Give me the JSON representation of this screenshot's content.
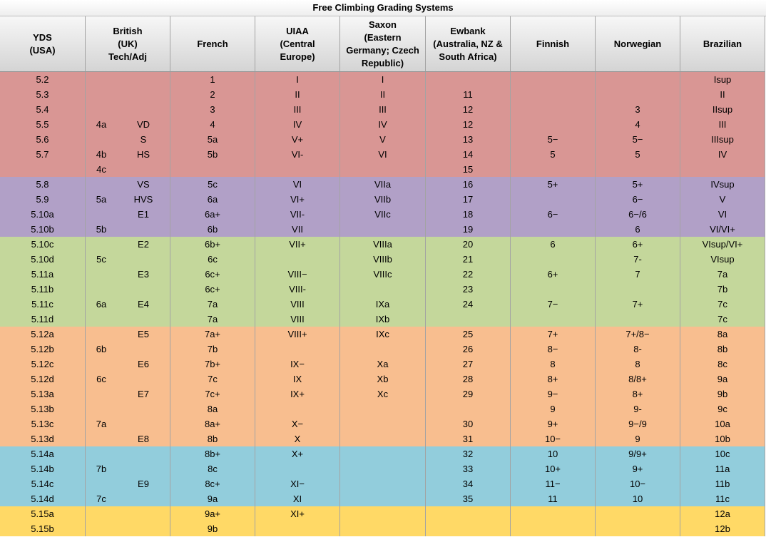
{
  "title": "Free Climbing Grading Systems",
  "headers": [
    {
      "label": "YDS\n(USA)",
      "span": 1
    },
    {
      "label": "British\n(UK)\nTech/Adj",
      "span": 2
    },
    {
      "label": "French",
      "span": 1
    },
    {
      "label": "UIAA\n(Central\nEurope)",
      "span": 1
    },
    {
      "label": "Saxon\n(Eastern\nGermany; Czech\nRepublic)",
      "span": 1
    },
    {
      "label": "Ewbank\n(Australia, NZ &\nSouth Africa)",
      "span": 1
    },
    {
      "label": "Finnish",
      "span": 1
    },
    {
      "label": "Norwegian",
      "span": 1
    },
    {
      "label": "Brazilian",
      "span": 1
    }
  ],
  "group_colors": {
    "red": "#d99694",
    "purple": "#b1a0c7",
    "green": "#c4d79b",
    "orange": "#f8be8f",
    "blue": "#92cddc",
    "yellow": "#ffd966"
  },
  "rows": [
    {
      "group": "red",
      "cells": [
        "5.2",
        "",
        "",
        "1",
        "I",
        "I",
        "",
        "",
        "",
        "Isup"
      ]
    },
    {
      "group": "red",
      "cells": [
        "5.3",
        "",
        "",
        "2",
        "II",
        "II",
        "11",
        "",
        "",
        "II"
      ]
    },
    {
      "group": "red",
      "cells": [
        "5.4",
        "",
        "",
        "3",
        "III",
        "III",
        "12",
        "",
        "3",
        "IIsup"
      ]
    },
    {
      "group": "red",
      "cells": [
        "5.5",
        "4a",
        "VD",
        "4",
        "IV",
        "IV",
        "12",
        "",
        "4",
        "III"
      ]
    },
    {
      "group": "red",
      "cells": [
        "5.6",
        "",
        "S",
        "5a",
        "V+",
        "V",
        "13",
        "5−",
        "5−",
        "IIIsup"
      ]
    },
    {
      "group": "red",
      "cells": [
        "5.7",
        "4b",
        "HS",
        "5b",
        "VI-",
        "VI",
        "14",
        "5",
        "5",
        "IV"
      ]
    },
    {
      "group": "red",
      "cells": [
        "",
        "4c",
        "",
        "",
        "",
        "",
        "15",
        "",
        "",
        ""
      ]
    },
    {
      "group": "purple",
      "cells": [
        "5.8",
        "",
        "VS",
        "5c",
        "VI",
        "VIIa",
        "16",
        "5+",
        "5+",
        "IVsup"
      ]
    },
    {
      "group": "purple",
      "cells": [
        "5.9",
        "5a",
        "HVS",
        "6a",
        "VI+",
        "VIIb",
        "17",
        "",
        "6−",
        "V"
      ]
    },
    {
      "group": "purple",
      "cells": [
        "5.10a",
        "",
        "E1",
        "6a+",
        "VII-",
        "VIIc",
        "18",
        "6−",
        "6−/6",
        "VI"
      ]
    },
    {
      "group": "purple",
      "cells": [
        "5.10b",
        "5b",
        "",
        "6b",
        "VII",
        "",
        "19",
        "",
        "6",
        "VI/VI+"
      ]
    },
    {
      "group": "green",
      "cells": [
        "5.10c",
        "",
        "E2",
        "6b+",
        "VII+",
        "VIIIa",
        "20",
        "6",
        "6+",
        "VIsup/VI+"
      ]
    },
    {
      "group": "green",
      "cells": [
        "5.10d",
        "5c",
        "",
        "6c",
        "",
        "VIIIb",
        "21",
        "",
        "7-",
        "VIsup"
      ]
    },
    {
      "group": "green",
      "cells": [
        "5.11a",
        "",
        "E3",
        "6c+",
        "VIII−",
        "VIIIc",
        "22",
        "6+",
        "7",
        "7a"
      ]
    },
    {
      "group": "green",
      "cells": [
        "5.11b",
        "",
        "",
        "6c+",
        "VIII-",
        "",
        "23",
        "",
        "",
        "7b"
      ]
    },
    {
      "group": "green",
      "cells": [
        "5.11c",
        "6a",
        "E4",
        "7a",
        "VIII",
        "IXa",
        "24",
        "7−",
        "7+",
        "7c"
      ]
    },
    {
      "group": "green",
      "cells": [
        "5.11d",
        "",
        "",
        "7a",
        "VIII",
        "IXb",
        "",
        "",
        "",
        "7c"
      ]
    },
    {
      "group": "orange",
      "cells": [
        "5.12a",
        "",
        "E5",
        "7a+",
        "VIII+",
        "IXc",
        "25",
        "7+",
        "7+/8−",
        "8a"
      ]
    },
    {
      "group": "orange",
      "cells": [
        "5.12b",
        "6b",
        "",
        "7b",
        "",
        "",
        "26",
        "8−",
        "8-",
        "8b"
      ]
    },
    {
      "group": "orange",
      "cells": [
        "5.12c",
        "",
        "E6",
        "7b+",
        "IX−",
        "Xa",
        "27",
        "8",
        "8",
        "8c"
      ]
    },
    {
      "group": "orange",
      "cells": [
        "5.12d",
        "6c",
        "",
        "7c",
        "IX",
        "Xb",
        "28",
        "8+",
        "8/8+",
        "9a"
      ]
    },
    {
      "group": "orange",
      "cells": [
        "5.13a",
        "",
        "E7",
        "7c+",
        "IX+",
        "Xc",
        "29",
        "9−",
        "8+",
        "9b"
      ]
    },
    {
      "group": "orange",
      "cells": [
        "5.13b",
        "",
        "",
        "8a",
        "",
        "",
        "",
        "9",
        "9-",
        "9c"
      ]
    },
    {
      "group": "orange",
      "cells": [
        "5.13c",
        "7a",
        "",
        "8a+",
        "X−",
        "",
        "30",
        "9+",
        "9−/9",
        "10a"
      ]
    },
    {
      "group": "orange",
      "cells": [
        "5.13d",
        "",
        "E8",
        "8b",
        "X",
        "",
        "31",
        "10−",
        "9",
        "10b"
      ]
    },
    {
      "group": "blue",
      "cells": [
        "5.14a",
        "",
        "",
        "8b+",
        "X+",
        "",
        "32",
        "10",
        "9/9+",
        "10c"
      ]
    },
    {
      "group": "blue",
      "cells": [
        "5.14b",
        "7b",
        "",
        "8c",
        "",
        "",
        "33",
        "10+",
        "9+",
        "11a"
      ]
    },
    {
      "group": "blue",
      "cells": [
        "5.14c",
        "",
        "E9",
        "8c+",
        "XI−",
        "",
        "34",
        "11−",
        "10−",
        "11b"
      ]
    },
    {
      "group": "blue",
      "cells": [
        "5.14d",
        "7c",
        "",
        "9a",
        "XI",
        "",
        "35",
        "11",
        "10",
        "11c"
      ]
    },
    {
      "group": "yellow",
      "cells": [
        "5.15a",
        "",
        "",
        "9a+",
        "XI+",
        "",
        "",
        "",
        "",
        "12a"
      ]
    },
    {
      "group": "yellow",
      "cells": [
        "5.15b",
        "",
        "",
        "9b",
        "",
        "",
        "",
        "",
        "",
        "12b"
      ]
    }
  ]
}
